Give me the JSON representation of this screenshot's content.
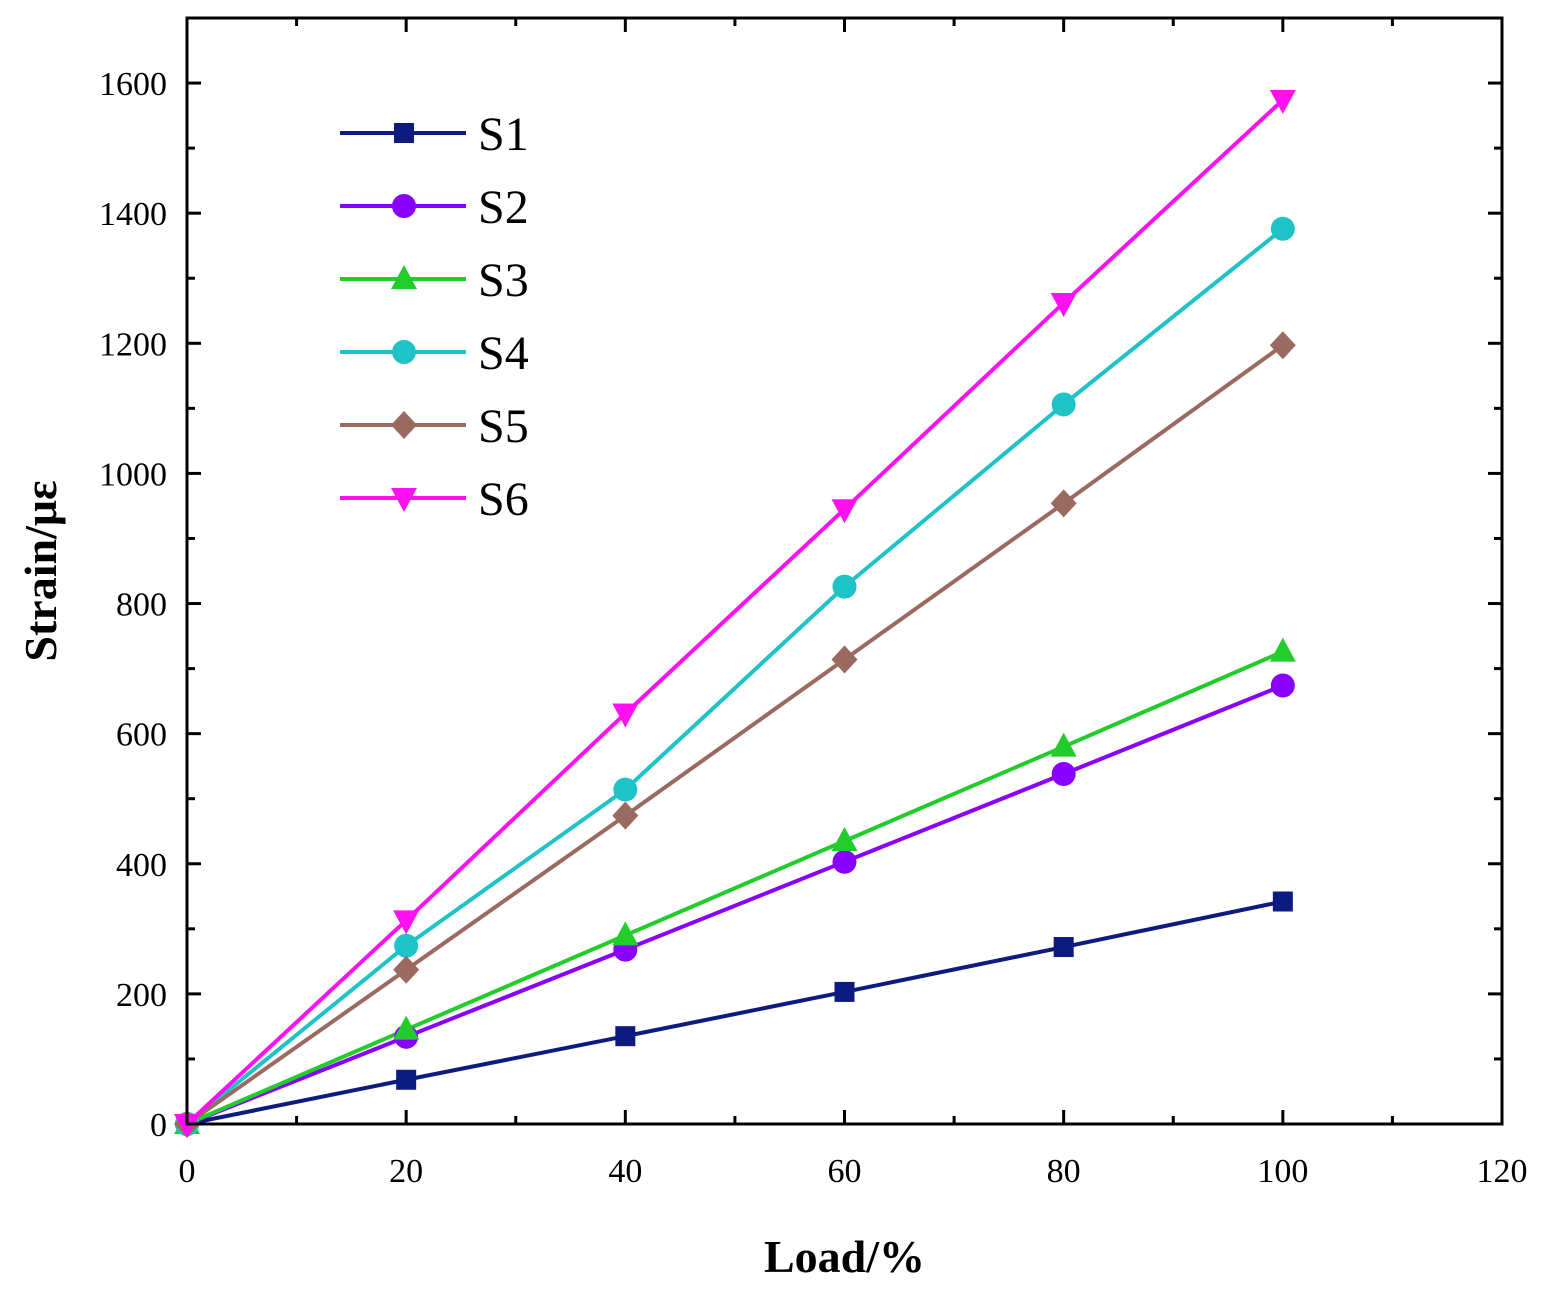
{
  "chart_data": {
    "type": "line",
    "title": "",
    "xlabel": "Load/%",
    "ylabel": "Strain/με",
    "xlim": [
      0,
      120
    ],
    "ylim": [
      0,
      1700
    ],
    "xticks": [
      0,
      20,
      40,
      60,
      80,
      100,
      120
    ],
    "yticks": [
      0,
      200,
      400,
      600,
      800,
      1000,
      1200,
      1400,
      1600
    ],
    "x_minor_step": 10,
    "y_minor_step": 100,
    "grid": false,
    "legend_position": "top-left",
    "x": [
      0,
      20,
      40,
      60,
      80,
      100
    ],
    "series": [
      {
        "name": "S1",
        "color": "#0d1a80",
        "marker": "square",
        "values": [
          0,
          68,
          135,
          203,
          272,
          342
        ]
      },
      {
        "name": "S2",
        "color": "#8a00ff",
        "marker": "circle",
        "values": [
          0,
          134,
          268,
          403,
          538,
          674
        ]
      },
      {
        "name": "S3",
        "color": "#22cc2a",
        "marker": "triangle-up",
        "values": [
          0,
          145,
          290,
          435,
          580,
          726
        ]
      },
      {
        "name": "S4",
        "color": "#1ec3c8",
        "marker": "circle",
        "values": [
          0,
          274,
          514,
          826,
          1106,
          1376
        ]
      },
      {
        "name": "S5",
        "color": "#9a6a60",
        "marker": "diamond",
        "values": [
          0,
          237,
          474,
          714,
          954,
          1197
        ]
      },
      {
        "name": "S6",
        "color": "#ff10f0",
        "marker": "triangle-down",
        "values": [
          0,
          313,
          631,
          945,
          1262,
          1574
        ]
      }
    ]
  }
}
